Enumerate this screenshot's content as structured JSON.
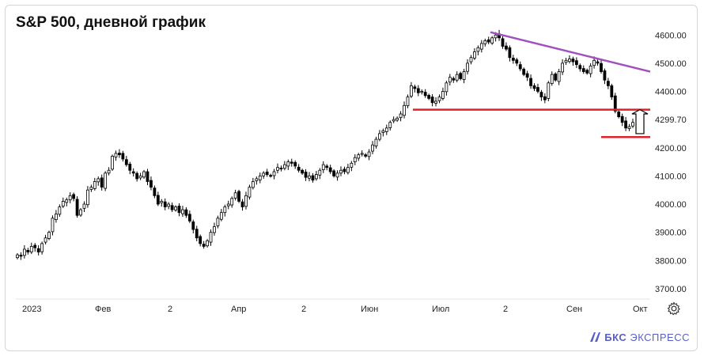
{
  "header": {
    "title": "S&P 500, дневной график"
  },
  "brand": {
    "mark": "БКС",
    "name": "ЭКСПРЕСС"
  },
  "colors": {
    "candle": "#000000",
    "support": "#e0202a",
    "resistance": "#a04fc0",
    "grid": "#eeeeee",
    "brand": "#5a5fc8"
  },
  "icons": {
    "settings": "gear-icon",
    "arrow": "up-arrow-icon",
    "logo": "bks-logo-icon"
  },
  "chart_data": {
    "type": "candlestick",
    "ylim": [
      3680,
      4640
    ],
    "yticks": [
      "4600.00",
      "4500.00",
      "4400.00",
      "4299.70",
      "4200.00",
      "4100.00",
      "4000.00",
      "3900.00",
      "3800.00",
      "3700.00"
    ],
    "xticks": [
      "2023",
      "Фев",
      "2",
      "Апр",
      "2",
      "Июн",
      "Июл",
      "2",
      "Сен",
      "Окт"
    ],
    "close_series": [
      3820,
      3815,
      3840,
      3830,
      3850,
      3845,
      3830,
      3860,
      3880,
      3900,
      3950,
      3965,
      3990,
      4010,
      4015,
      4030,
      4020,
      3960,
      3980,
      4000,
      4050,
      4060,
      4080,
      4090,
      4060,
      4110,
      4120,
      4170,
      4180,
      4175,
      4160,
      4140,
      4120,
      4110,
      4090,
      4100,
      4115,
      4080,
      4060,
      4030,
      4000,
      4010,
      3990,
      4000,
      3980,
      3990,
      3970,
      3980,
      3960,
      3940,
      3910,
      3880,
      3860,
      3850,
      3870,
      3900,
      3920,
      3950,
      3970,
      3990,
      4000,
      4020,
      4040,
      4010,
      3990,
      4030,
      4060,
      4080,
      4090,
      4100,
      4110,
      4105,
      4100,
      4115,
      4130,
      4125,
      4140,
      4150,
      4145,
      4135,
      4120,
      4110,
      4095,
      4100,
      4085,
      4105,
      4120,
      4140,
      4130,
      4115,
      4100,
      4110,
      4120,
      4115,
      4130,
      4145,
      4165,
      4175,
      4180,
      4170,
      4185,
      4210,
      4230,
      4250,
      4260,
      4270,
      4290,
      4300,
      4305,
      4320,
      4350,
      4380,
      4420,
      4410,
      4395,
      4400,
      4385,
      4375,
      4360,
      4365,
      4380,
      4400,
      4430,
      4450,
      4440,
      4460,
      4445,
      4470,
      4500,
      4520,
      4540,
      4555,
      4570,
      4580,
      4575,
      4590,
      4600,
      4590,
      4560,
      4550,
      4520,
      4510,
      4500,
      4480,
      4460,
      4450,
      4420,
      4410,
      4400,
      4380,
      4370,
      4430,
      4460,
      4440,
      4470,
      4500,
      4510,
      4515,
      4505,
      4495,
      4480,
      4470,
      4465,
      4490,
      4510,
      4500,
      4470,
      4440,
      4420,
      4380,
      4330,
      4310,
      4290,
      4270,
      4275,
      4290
    ],
    "lines": [
      {
        "name": "",
        "kind": "resistance",
        "from": [
          0.0,
          4610
        ],
        "to": [
          1.0,
          4470
        ]
      },
      {
        "name": "",
        "kind": "support",
        "y": 4335
      },
      {
        "name": "",
        "kind": "support",
        "y": 4238
      }
    ]
  }
}
